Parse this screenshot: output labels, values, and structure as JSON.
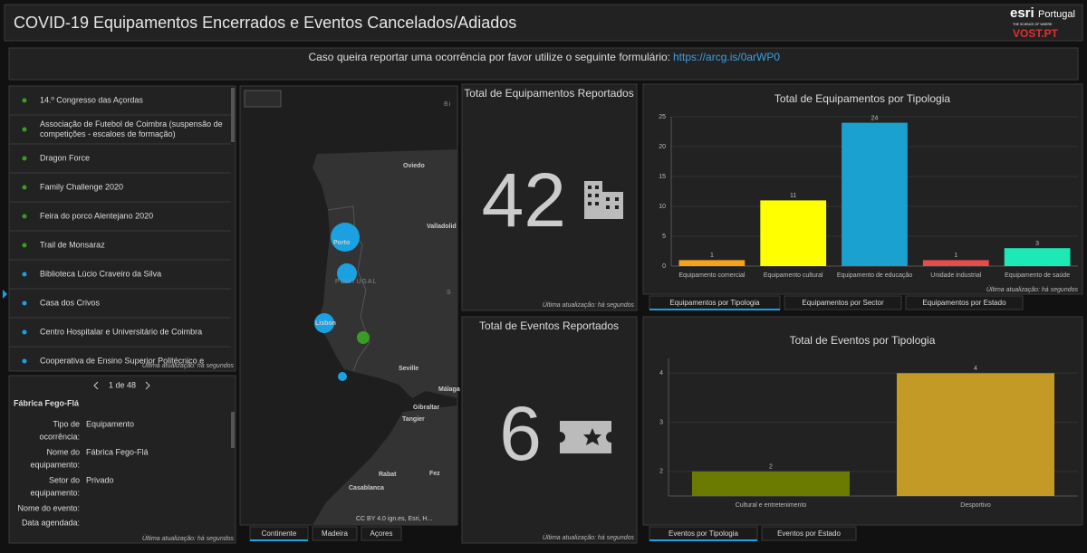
{
  "header": {
    "title": "COVID-19 Equipamentos Encerrados e Eventos Cancelados/Adiados",
    "logo_esri": "esri",
    "logo_portugal": "Portugal",
    "logo_tagline": "THE SCIENCE OF WHERE",
    "logo_vost": "VOST.PT"
  },
  "banner": {
    "text": "Caso queira reportar uma ocorrência por favor utilize o seguinte formulário:",
    "link": "https://arcg.is/0arWP0"
  },
  "list": {
    "items": [
      {
        "lines": [
          "14.º Congresso das Açordas"
        ],
        "color": "#3a9d23"
      },
      {
        "lines": [
          "Associação de Futebol de Coimbra (suspensão de",
          "competições - escaloes de formação)"
        ],
        "color": "#3a9d23"
      },
      {
        "lines": [
          "Dragon Force"
        ],
        "color": "#3a9d23"
      },
      {
        "lines": [
          "Family Challenge 2020"
        ],
        "color": "#3a9d23"
      },
      {
        "lines": [
          "Feira do porco Alentejano 2020"
        ],
        "color": "#3a9d23"
      },
      {
        "lines": [
          "Trail de Monsaraz"
        ],
        "color": "#3a9d23"
      },
      {
        "lines": [
          "Biblioteca Lúcio Craveiro da Silva"
        ],
        "color": "#1ba1e2"
      },
      {
        "lines": [
          "Casa dos Crivos"
        ],
        "color": "#1ba1e2"
      },
      {
        "lines": [
          "Centro Hospitalar e Universitário de Coimbra"
        ],
        "color": "#1ba1e2"
      },
      {
        "lines": [
          "Cooperativa de Ensino Superior Politécnico e"
        ],
        "color": "#1ba1e2"
      }
    ],
    "footer": "Última atualização: há segundos"
  },
  "details": {
    "pager": "1 de 48",
    "title": "Fábrica Fego-Flá",
    "fields": [
      {
        "label": [
          "Tipo de",
          "ocorrência:"
        ],
        "value": "Equipamento"
      },
      {
        "label": [
          "Nome do",
          "equipamento:"
        ],
        "value": "Fábrica Fego-Flá"
      },
      {
        "label": [
          "Setor do",
          "equipamento:"
        ],
        "value": "Privado"
      },
      {
        "label": [
          "Nome do evento:"
        ]
      },
      {
        "label": [
          "Data agendada:"
        ]
      }
    ],
    "footer": "Última atualização: há segundos"
  },
  "map": {
    "labels": [
      "Oviedo",
      "Valladolid",
      "PORTUGAL",
      "Porto",
      "Lisbon",
      "Seville",
      "Málaga",
      "Gibraltar",
      "Tangier",
      "Rabat",
      "Fez",
      "Casablanca",
      "S",
      "Bi"
    ],
    "attribution": "CC BY 4.0 ign.es, Esri, H...",
    "tabs": [
      "Continente",
      "Madeira",
      "Açores"
    ]
  },
  "indicator_equip": {
    "title": "Total de Equipamentos Reportados",
    "value": 42,
    "footer": "Última atualização: há segundos"
  },
  "indicator_events": {
    "title": "Total de Eventos Reportados",
    "value": 6,
    "footer": "Última atualização: há segundos"
  },
  "chart_equip": {
    "type": "bar",
    "title": "Total de Equipamentos por Tipologia",
    "categories": [
      "Equipamento comercial",
      "Equipamento cultural",
      "Equipamento de educação",
      "Unidade industrial",
      "Equipamento de saúde"
    ],
    "values": [
      1,
      11,
      24,
      1,
      3
    ],
    "colors": [
      "#f7a21b",
      "#ffff00",
      "#1ba1d0",
      "#e74c4c",
      "#1de9b6"
    ],
    "ylim": [
      0,
      25
    ],
    "yticks": [
      0,
      5,
      10,
      15,
      20,
      25
    ],
    "grid": true,
    "tabs": [
      "Equipamentos por Tipologia",
      "Equipamentos por Sector",
      "Equipamentos por Estado"
    ],
    "footer": "Última atualização: há segundos"
  },
  "chart_events": {
    "type": "bar",
    "title": "Total de Eventos por Tipologia",
    "categories": [
      "Cultural e entretenimento",
      "Desportivo"
    ],
    "values": [
      2,
      4
    ],
    "colors": [
      "#6b7a00",
      "#c39a25"
    ],
    "ylim": [
      1.5,
      4.3
    ],
    "yticks": [
      2,
      3,
      4
    ],
    "grid": true,
    "tabs": [
      "Eventos por Tipologia",
      "Eventos por Estado"
    ]
  }
}
